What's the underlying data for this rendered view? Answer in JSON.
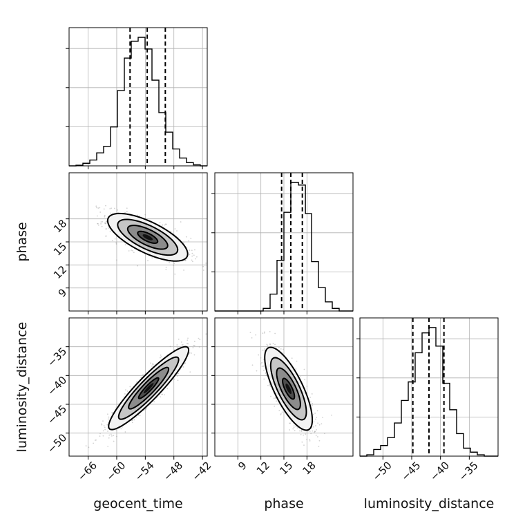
{
  "chart_data": {
    "type": "corner",
    "parameters": [
      "geocent_time",
      "phase",
      "luminosity_distance"
    ],
    "ranges": {
      "geocent_time": [
        -70,
        -41
      ],
      "phase": [
        6,
        24
      ],
      "luminosity_distance": [
        -54,
        -30
      ]
    },
    "ticks": {
      "geocent_time": [
        -66,
        -60,
        -54,
        -48,
        -42
      ],
      "phase": [
        9,
        12,
        15,
        18
      ],
      "luminosity_distance": [
        -50,
        -45,
        -40,
        -35
      ]
    },
    "tick_labels": {
      "geocent_time": [
        "−66",
        "−60",
        "−54",
        "−48",
        "−42"
      ],
      "phase": [
        "9",
        "12",
        "15",
        "18"
      ],
      "luminosity_distance": [
        "−50",
        "−45",
        "−40",
        "−35"
      ]
    },
    "grid": true,
    "marginals": [
      {
        "parameter": "geocent_time",
        "bin_edges": [
          -70,
          -68.55,
          -67.1,
          -65.65,
          -64.2,
          -62.75,
          -61.3,
          -59.85,
          -58.4,
          -56.95,
          -55.5,
          -54.05,
          -52.6,
          -51.15,
          -49.7,
          -48.25,
          -46.8,
          -45.35,
          -43.9,
          -42.45,
          -41
        ],
        "heights": [
          0.0,
          0.005,
          0.02,
          0.045,
          0.1,
          0.15,
          0.3,
          0.58,
          0.83,
          0.96,
          0.99,
          0.9,
          0.66,
          0.41,
          0.26,
          0.13,
          0.06,
          0.025,
          0.008,
          0.0
        ],
        "quantiles": [
          -57.2,
          -53.6,
          -49.8
        ]
      },
      {
        "parameter": "phase",
        "bin_edges": [
          6,
          6.9,
          7.8,
          8.7,
          9.6,
          10.5,
          11.4,
          12.3,
          13.2,
          14.1,
          15.0,
          15.9,
          16.9,
          17.8,
          18.6,
          19.5,
          20.4,
          21.3,
          22.2,
          23.1,
          24
        ],
        "heights": [
          0.0,
          0.0,
          0.0,
          0.0,
          0.0,
          0.0,
          0.0,
          0.02,
          0.13,
          0.39,
          0.76,
          0.99,
          0.97,
          0.75,
          0.38,
          0.18,
          0.07,
          0.02,
          0.0,
          0.0
        ],
        "quantiles": [
          14.7,
          15.9,
          17.4
        ]
      },
      {
        "parameter": "luminosity_distance",
        "bin_edges": [
          -54,
          -52.8,
          -51.6,
          -50.4,
          -49.2,
          -48.0,
          -46.8,
          -45.6,
          -44.4,
          -43.2,
          -42.0,
          -40.8,
          -39.6,
          -38.4,
          -37.2,
          -36.0,
          -34.8,
          -33.6,
          -32.4,
          -31.2,
          -30
        ],
        "heights": [
          0.0,
          0.01,
          0.05,
          0.08,
          0.14,
          0.25,
          0.42,
          0.56,
          0.78,
          0.93,
          0.97,
          0.83,
          0.55,
          0.35,
          0.17,
          0.06,
          0.03,
          0.01,
          0.0,
          0.0
        ],
        "quantiles": [
          -44.8,
          -42.0,
          -39.4
        ]
      }
    ],
    "joint": [
      {
        "x": "geocent_time",
        "y": "phase",
        "mean": [
          -53.5,
          15.6
        ],
        "std": [
          4.2,
          1.55
        ],
        "correlation": -0.7,
        "contour_levels_sigma": [
          0.5,
          1.0,
          1.5,
          2.0
        ]
      },
      {
        "x": "geocent_time",
        "y": "luminosity_distance",
        "mean": [
          -53.3,
          -42.2
        ],
        "std": [
          4.2,
          3.6
        ],
        "correlation": 0.92,
        "contour_levels_sigma": [
          0.5,
          1.0,
          1.5,
          2.0
        ]
      },
      {
        "x": "phase",
        "y": "luminosity_distance",
        "mean": [
          15.6,
          -42.3
        ],
        "std": [
          1.55,
          3.6
        ],
        "correlation": -0.75,
        "contour_levels_sigma": [
          0.5,
          1.0,
          1.5,
          2.0
        ]
      }
    ]
  }
}
